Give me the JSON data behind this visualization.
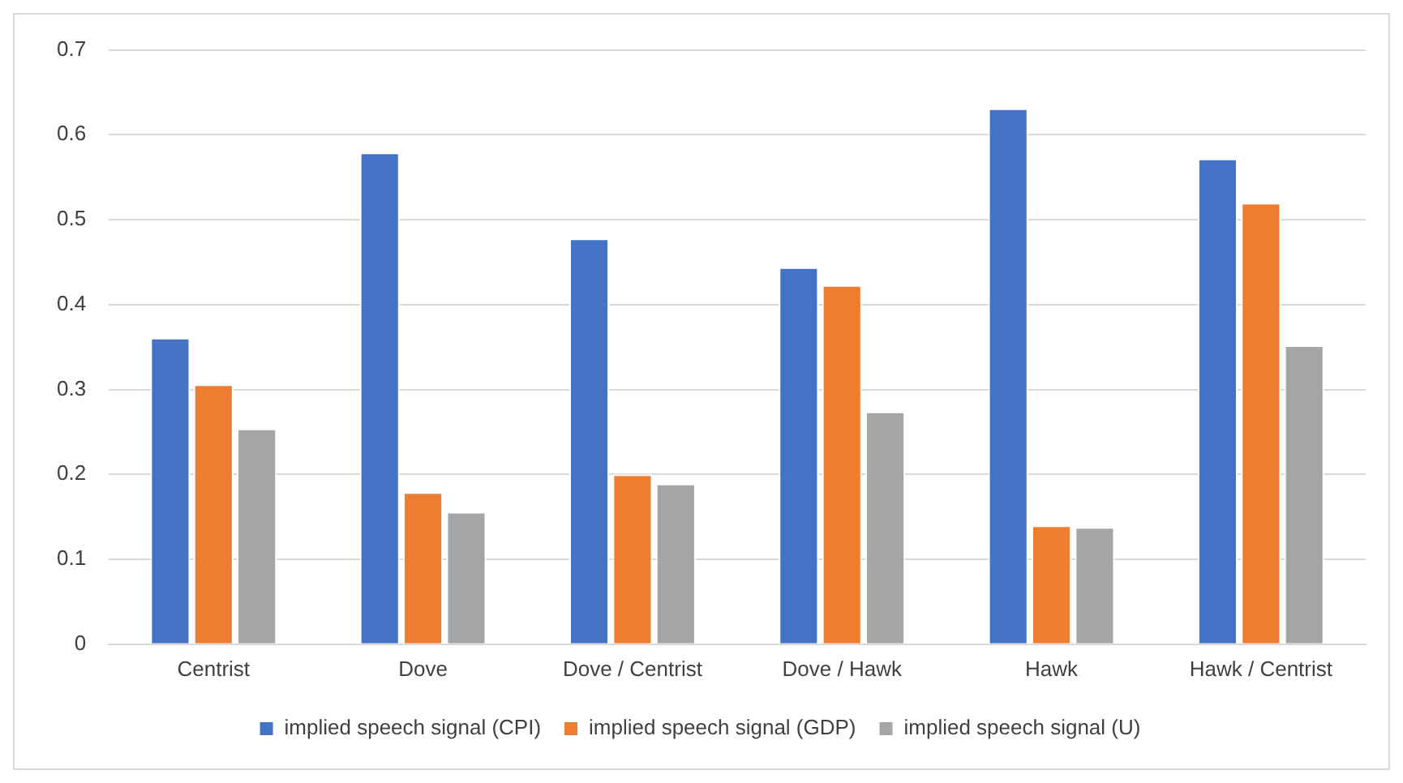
{
  "chart_data": {
    "type": "bar",
    "categories": [
      "Centrist",
      "Dove",
      "Dove / Centrist",
      "Dove / Hawk",
      "Hawk",
      "Hawk / Centrist"
    ],
    "series": [
      {
        "name": "implied speech signal (CPI)",
        "color": "#4472c4",
        "values": [
          0.361,
          0.579,
          0.478,
          0.444,
          0.631,
          0.572
        ]
      },
      {
        "name": "implied speech signal (GDP)",
        "color": "#ed7d31",
        "values": [
          0.306,
          0.179,
          0.2,
          0.423,
          0.14,
          0.52
        ]
      },
      {
        "name": "implied speech signal (U)",
        "color": "#a5a5a5",
        "values": [
          0.254,
          0.156,
          0.189,
          0.274,
          0.138,
          0.352
        ]
      }
    ],
    "ylim": [
      0,
      0.7
    ],
    "yticks": [
      0,
      0.1,
      0.2,
      0.3,
      0.4,
      0.5,
      0.6,
      0.7
    ],
    "grid": "y",
    "legend": "bottom"
  }
}
